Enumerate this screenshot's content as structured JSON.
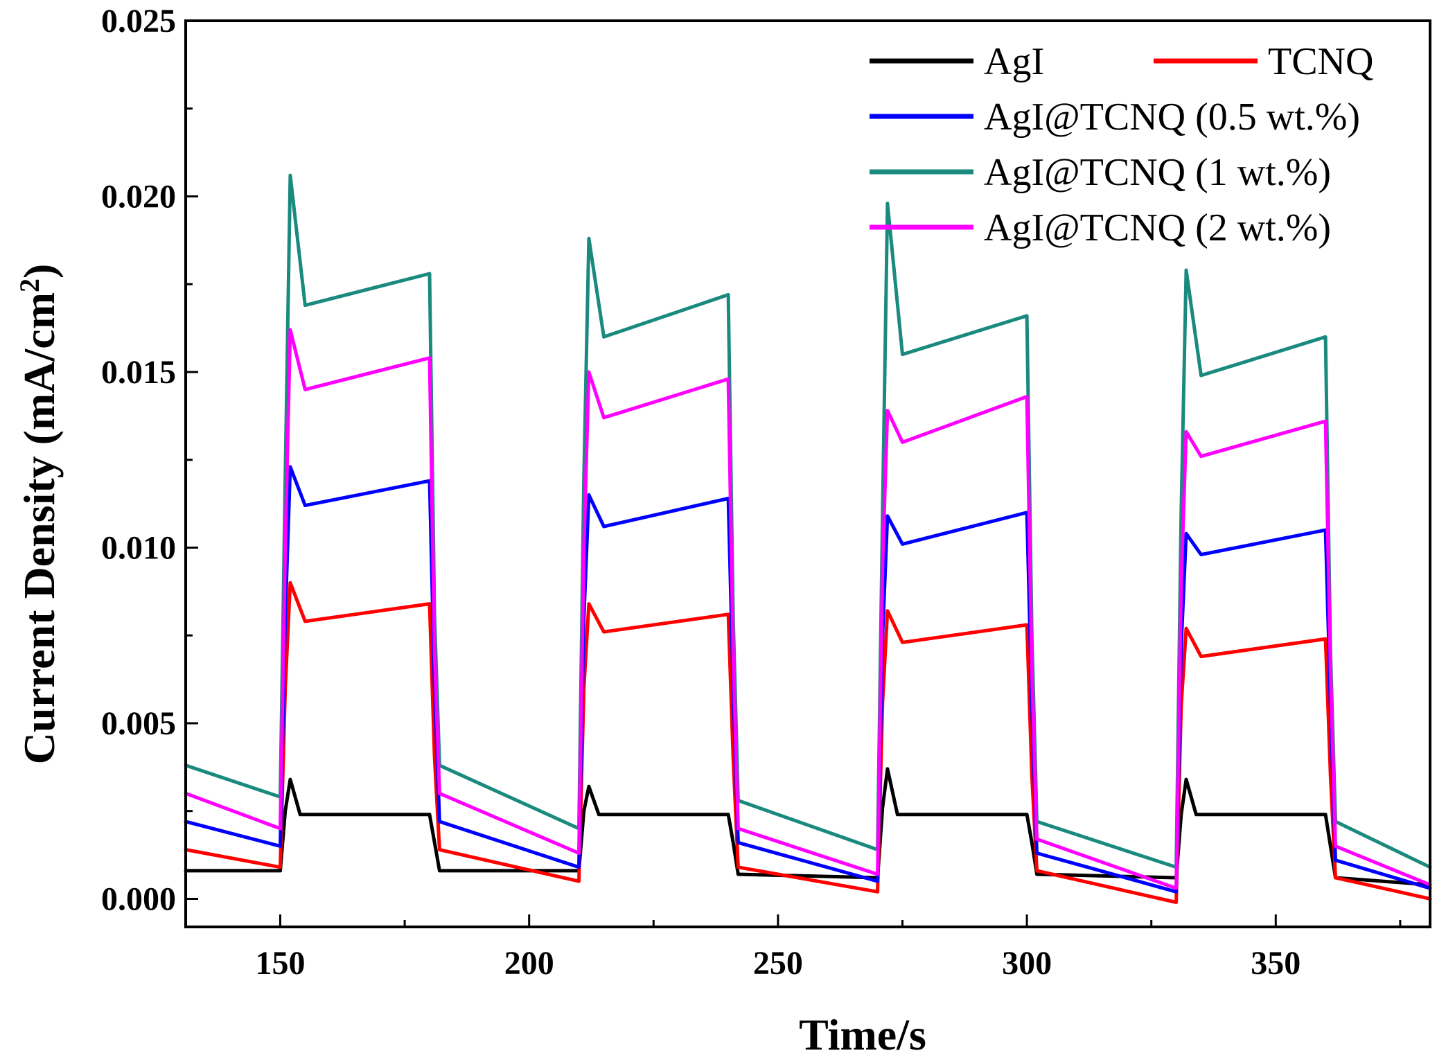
{
  "chart_data": {
    "type": "line",
    "title": "",
    "xlabel": "Time/s",
    "ylabel": "Current Density (mA/cm",
    "ylabel_superscript": "2",
    "ylabel_close": ")",
    "xlim": [
      131,
      381
    ],
    "ylim": [
      -0.0008,
      0.025
    ],
    "x_ticks": [
      150,
      200,
      250,
      300,
      350
    ],
    "x_tick_labels": [
      "150",
      "200",
      "250",
      "300",
      "350"
    ],
    "y_ticks": [
      0.0,
      0.005,
      0.01,
      0.015,
      0.02,
      0.025
    ],
    "y_tick_labels": [
      "0.000",
      "0.005",
      "0.010",
      "0.015",
      "0.020",
      "0.025"
    ],
    "grid": false,
    "legend_position": "top-right",
    "light_on_intervals": [
      [
        150,
        180
      ],
      [
        210,
        240
      ],
      [
        270,
        300
      ],
      [
        330,
        360
      ]
    ],
    "series": [
      {
        "name": "AgI",
        "color": "#000000",
        "x": [
          131,
          150,
          151,
          152,
          154,
          180,
          181,
          182,
          210,
          211,
          212,
          214,
          240,
          241,
          242,
          270,
          271,
          272,
          274,
          300,
          301,
          302,
          330,
          331,
          332,
          334,
          360,
          361,
          362,
          381
        ],
        "y": [
          0.0008,
          0.0008,
          0.0025,
          0.0034,
          0.0024,
          0.0024,
          0.0016,
          0.0008,
          0.0008,
          0.0025,
          0.0032,
          0.0024,
          0.0024,
          0.0016,
          0.0007,
          0.0006,
          0.0026,
          0.0037,
          0.0024,
          0.0024,
          0.0016,
          0.0007,
          0.0006,
          0.0024,
          0.0034,
          0.0024,
          0.0024,
          0.0015,
          0.0006,
          0.0004
        ]
      },
      {
        "name": "TCNQ",
        "color": "#ff0000",
        "x": [
          131,
          150,
          151,
          152,
          155,
          180,
          181,
          182,
          210,
          211,
          212,
          215,
          240,
          241,
          242,
          270,
          271,
          272,
          275,
          300,
          301,
          302,
          330,
          331,
          332,
          335,
          360,
          361,
          362,
          381
        ],
        "y": [
          0.0014,
          0.0009,
          0.006,
          0.009,
          0.0079,
          0.0084,
          0.004,
          0.0014,
          0.0005,
          0.006,
          0.0084,
          0.0076,
          0.0081,
          0.004,
          0.0009,
          0.0002,
          0.0056,
          0.0082,
          0.0073,
          0.0078,
          0.0035,
          0.0008,
          -0.0001,
          0.0055,
          0.0077,
          0.0069,
          0.0074,
          0.0035,
          0.0006,
          0.0
        ]
      },
      {
        "name": "AgI@TCNQ (0.5 wt.%)",
        "color": "#0000ff",
        "x": [
          131,
          150,
          151,
          152,
          155,
          180,
          181,
          182,
          210,
          211,
          212,
          215,
          240,
          241,
          242,
          270,
          271,
          272,
          275,
          300,
          301,
          302,
          330,
          331,
          332,
          335,
          360,
          361,
          362,
          381
        ],
        "y": [
          0.0022,
          0.0015,
          0.008,
          0.0123,
          0.0112,
          0.0119,
          0.006,
          0.0022,
          0.0009,
          0.008,
          0.0115,
          0.0106,
          0.0114,
          0.006,
          0.0016,
          0.0005,
          0.0075,
          0.0109,
          0.0101,
          0.011,
          0.0055,
          0.0013,
          0.0002,
          0.0072,
          0.0104,
          0.0098,
          0.0105,
          0.0055,
          0.0011,
          0.0003
        ]
      },
      {
        "name": "AgI@TCNQ (1 wt.%)",
        "color": "#1a8a7f",
        "x": [
          131,
          150,
          151,
          152,
          155,
          180,
          181,
          182,
          210,
          211,
          212,
          215,
          240,
          241,
          242,
          270,
          271,
          272,
          275,
          300,
          301,
          302,
          330,
          331,
          332,
          335,
          360,
          361,
          362,
          381
        ],
        "y": [
          0.0038,
          0.0029,
          0.012,
          0.0206,
          0.0169,
          0.0178,
          0.008,
          0.0038,
          0.002,
          0.012,
          0.0188,
          0.016,
          0.0172,
          0.008,
          0.0028,
          0.0014,
          0.011,
          0.0198,
          0.0155,
          0.0166,
          0.0075,
          0.0022,
          0.0009,
          0.011,
          0.0179,
          0.0149,
          0.016,
          0.007,
          0.0022,
          0.0009
        ]
      },
      {
        "name": "AgI@TCNQ (2 wt.%)",
        "color": "#ff00ff",
        "x": [
          131,
          150,
          151,
          152,
          155,
          180,
          181,
          182,
          210,
          211,
          212,
          215,
          240,
          241,
          242,
          270,
          271,
          272,
          275,
          300,
          301,
          302,
          330,
          331,
          332,
          335,
          360,
          361,
          362,
          381
        ],
        "y": [
          0.003,
          0.002,
          0.01,
          0.0162,
          0.0145,
          0.0154,
          0.007,
          0.003,
          0.0013,
          0.01,
          0.015,
          0.0137,
          0.0148,
          0.007,
          0.002,
          0.0007,
          0.0095,
          0.0139,
          0.013,
          0.0143,
          0.0065,
          0.0017,
          0.0003,
          0.009,
          0.0133,
          0.0126,
          0.0136,
          0.0065,
          0.0015,
          0.0004
        ]
      }
    ]
  }
}
